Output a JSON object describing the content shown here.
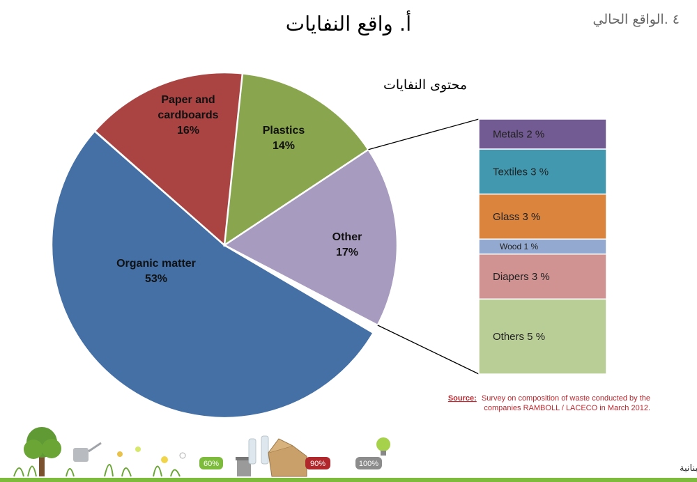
{
  "header": {
    "title": "أ. واقع النفايات",
    "section": "٤ .الواقع الحالي"
  },
  "chart_data": {
    "type": "pie",
    "title": "محتوى النفايات",
    "slices": [
      {
        "name": "Organic matter",
        "label_lines": [
          "Organic matter",
          "53%"
        ],
        "value": 53,
        "color": "#4470a6"
      },
      {
        "name": "Paper and cardboards",
        "label_lines": [
          "Paper and",
          "cardboards",
          "16%"
        ],
        "value": 16,
        "color": "#aa4443"
      },
      {
        "name": "Plastics",
        "label_lines": [
          "Plastics",
          "14%"
        ],
        "value": 14,
        "color": "#89a54e"
      },
      {
        "name": "Other",
        "label_lines": [
          "Other",
          "17%"
        ],
        "value": 17,
        "color": "#a79bbf"
      }
    ],
    "breakdown_of": "Other",
    "breakdown": [
      {
        "label": "Metals 2 %",
        "value": 2,
        "color": "#725a92"
      },
      {
        "label": "Textiles 3 %",
        "value": 3,
        "color": "#4198af"
      },
      {
        "label": "Glass 3 %",
        "value": 3,
        "color": "#db843d"
      },
      {
        "label": "Wood 1 %",
        "value": 1,
        "color": "#93a9cf"
      },
      {
        "label": "Diapers 3 %",
        "value": 3,
        "color": "#d19392"
      },
      {
        "label": "Others 5 %",
        "value": 5,
        "color": "#b9cd96"
      }
    ]
  },
  "source": {
    "label": "Source:",
    "line1": "Survey on composition of waste conducted by the",
    "line2": "companies RAMBOLL / LACECO in March 2012."
  },
  "footer": {
    "text": "الخطة المستدامة لإدارة النفايات الصلبة  -  الحركة البيئية اللبنانية",
    "badges": [
      {
        "label": "60%",
        "color": "#7dbb3c"
      },
      {
        "label": "90%",
        "color": "#b0282c"
      },
      {
        "label": "100%",
        "color": "#8c8c8c"
      }
    ]
  }
}
